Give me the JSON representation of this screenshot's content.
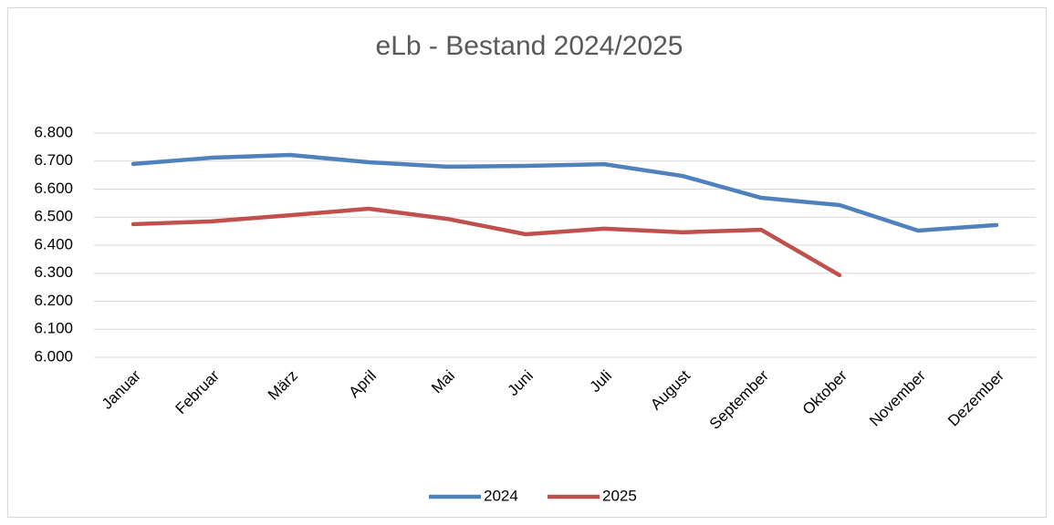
{
  "chart_data": {
    "type": "line",
    "title": "eLb - Bestand 2024/2025",
    "categories": [
      "Januar",
      "Februar",
      "März",
      "April",
      "Mai",
      "Juni",
      "Juli",
      "August",
      "September",
      "Oktober",
      "November",
      "Dezember"
    ],
    "series": [
      {
        "name": "2024",
        "color": "#4f81bd",
        "values": [
          6690,
          6712,
          6722,
          6696,
          6680,
          6683,
          6689,
          6647,
          6569,
          6543,
          6452,
          6472
        ]
      },
      {
        "name": "2025",
        "color": "#c0504d",
        "values": [
          6475,
          6485,
          6507,
          6530,
          6494,
          6439,
          6459,
          6446,
          6455,
          6293,
          null,
          null
        ]
      }
    ],
    "ylim": [
      6000,
      6800
    ],
    "yticks": [
      {
        "value": 6000,
        "label": "6.000"
      },
      {
        "value": 6100,
        "label": "6.100"
      },
      {
        "value": 6200,
        "label": "6.200"
      },
      {
        "value": 6300,
        "label": "6.300"
      },
      {
        "value": 6400,
        "label": "6.400"
      },
      {
        "value": 6500,
        "label": "6.500"
      },
      {
        "value": 6600,
        "label": "6.600"
      },
      {
        "value": 6700,
        "label": "6.700"
      },
      {
        "value": 6800,
        "label": "6.800"
      }
    ],
    "grid": true,
    "legend": "bottom"
  }
}
